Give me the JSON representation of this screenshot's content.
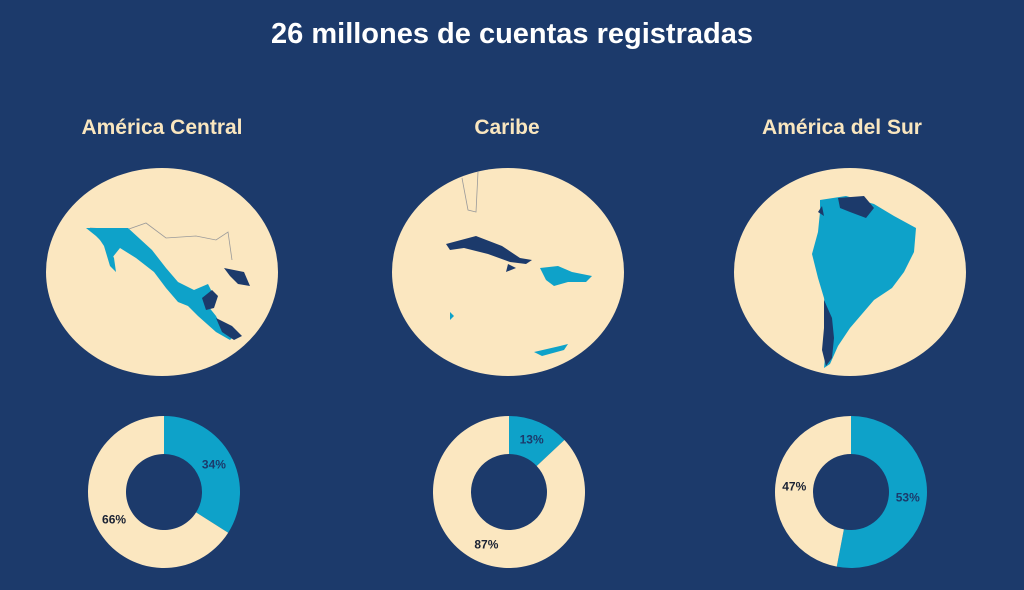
{
  "title": "26 millones de cuentas registradas",
  "colors": {
    "background": "#1c3a6b",
    "cream": "#fbe7c0",
    "accent": "#0ea2c9",
    "dark": "#1c3a6b"
  },
  "regions": [
    {
      "label": "América Central",
      "map": "central-america-mexico-map"
    },
    {
      "label": "Caribe",
      "map": "caribbean-islands-map"
    },
    {
      "label": "América del Sur",
      "map": "south-america-map"
    }
  ],
  "chart_data": [
    {
      "type": "pie",
      "title": "América Central",
      "series": [
        {
          "label": "34%",
          "value": 34,
          "color": "#0ea2c9"
        },
        {
          "label": "66%",
          "value": 66,
          "color": "#fbe7c0"
        }
      ]
    },
    {
      "type": "pie",
      "title": "Caribe",
      "series": [
        {
          "label": "13%",
          "value": 13,
          "color": "#0ea2c9"
        },
        {
          "label": "87%",
          "value": 87,
          "color": "#fbe7c0"
        }
      ]
    },
    {
      "type": "pie",
      "title": "América del Sur",
      "series": [
        {
          "label": "53%",
          "value": 53,
          "color": "#0ea2c9"
        },
        {
          "label": "47%",
          "value": 47,
          "color": "#fbe7c0"
        }
      ]
    }
  ]
}
